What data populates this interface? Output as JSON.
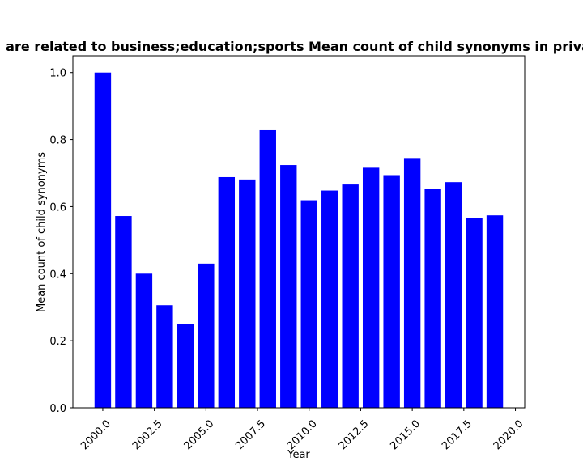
{
  "chart_data": {
    "type": "bar",
    "title": "are related to business;education;sports Mean count of child synonyms in priva",
    "xlabel": "Year",
    "ylabel": "Mean count of child synonyms",
    "x": [
      2000,
      2001,
      2002,
      2003,
      2004,
      2005,
      2006,
      2007,
      2008,
      2009,
      2010,
      2011,
      2012,
      2013,
      2014,
      2015,
      2016,
      2017,
      2018,
      2019
    ],
    "values": [
      1.0,
      0.572,
      0.4,
      0.306,
      0.251,
      0.43,
      0.688,
      0.681,
      0.828,
      0.724,
      0.619,
      0.648,
      0.666,
      0.716,
      0.694,
      0.745,
      0.654,
      0.673,
      0.565,
      0.574
    ],
    "xlim": [
      1998.55,
      2020.45
    ],
    "ylim": [
      0,
      1.05
    ],
    "xticks": [
      2000.0,
      2002.5,
      2005.0,
      2007.5,
      2010.0,
      2012.5,
      2015.0,
      2017.5,
      2020.0
    ],
    "xtick_labels": [
      "2000.0",
      "2002.5",
      "2005.0",
      "2007.5",
      "2010.0",
      "2012.5",
      "2015.0",
      "2017.5",
      "2020.0"
    ],
    "yticks": [
      0.0,
      0.2,
      0.4,
      0.6,
      0.8,
      1.0
    ],
    "ytick_labels": [
      "0.0",
      "0.2",
      "0.4",
      "0.6",
      "0.8",
      "1.0"
    ],
    "bar_color": "#0000ff",
    "grid": false
  }
}
